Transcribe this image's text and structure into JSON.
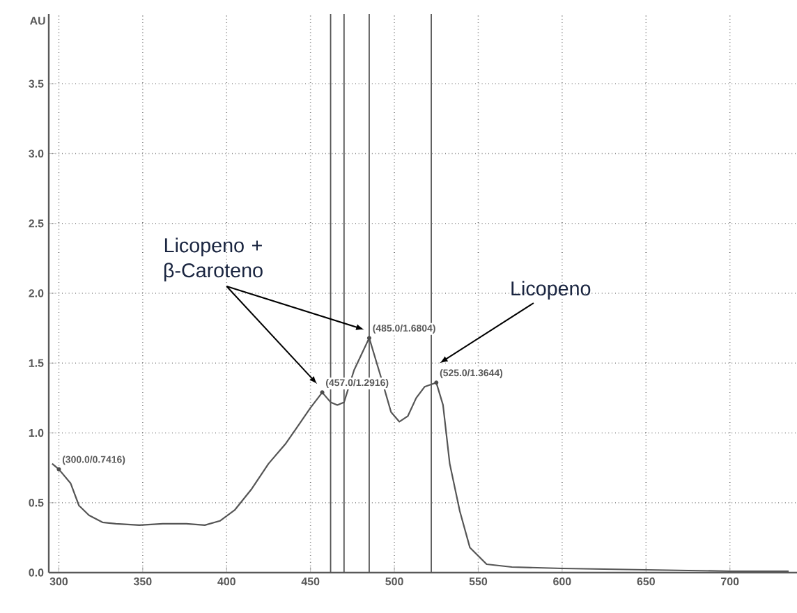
{
  "chart_data": {
    "type": "line",
    "ylabel": "AU",
    "x": [
      296,
      300,
      307,
      312,
      318,
      326,
      334,
      348,
      362,
      376,
      387,
      396,
      405,
      415,
      425,
      435,
      442,
      450,
      457,
      462,
      466,
      470,
      476,
      485,
      492,
      498,
      503,
      508,
      513,
      518,
      525,
      529,
      533,
      539,
      545,
      555,
      570,
      600,
      650,
      700,
      735
    ],
    "series": [
      {
        "color": "#555555",
        "values": [
          0.78,
          0.74,
          0.64,
          0.48,
          0.41,
          0.36,
          0.35,
          0.34,
          0.35,
          0.35,
          0.34,
          0.37,
          0.45,
          0.6,
          0.78,
          0.92,
          1.04,
          1.18,
          1.29,
          1.22,
          1.2,
          1.22,
          1.45,
          1.68,
          1.4,
          1.15,
          1.08,
          1.12,
          1.25,
          1.33,
          1.36,
          1.2,
          0.78,
          0.44,
          0.18,
          0.06,
          0.04,
          0.03,
          0.02,
          0.01,
          0.01
        ]
      }
    ],
    "xlim": [
      294,
      740
    ],
    "ylim": [
      0,
      4.0
    ],
    "xticks": [
      300,
      350,
      400,
      450,
      500,
      550,
      600,
      650,
      700
    ],
    "yticks": [
      {
        "value": 0,
        "label": "0.0"
      },
      {
        "value": 0.5,
        "label": "0.5"
      },
      {
        "value": 1,
        "label": "1.0"
      },
      {
        "value": 1.5,
        "label": "1.5"
      },
      {
        "value": 2,
        "label": "2.0"
      },
      {
        "value": 2.5,
        "label": "2.5"
      },
      {
        "value": 3,
        "label": "3.0"
      },
      {
        "value": 3.5,
        "label": "3.5"
      }
    ],
    "grid": true,
    "line_style": "solid",
    "ref_lines": [
      {
        "axis": "x",
        "value": 462,
        "color": "#555555"
      },
      {
        "axis": "x",
        "value": 470,
        "color": "#555555"
      },
      {
        "axis": "x",
        "value": 485,
        "color": "#555555"
      },
      {
        "axis": "x",
        "value": 522,
        "color": "#555555"
      }
    ],
    "annotations": [
      {
        "text": "(300.0/0.7416)",
        "x": 300,
        "y": 0.74
      },
      {
        "text": "(457.0/1.2916)",
        "x": 457,
        "y": 1.29
      },
      {
        "text": "(485.0/1.6804)",
        "x": 485,
        "y": 1.68
      },
      {
        "text": "(525.0/1.3644)",
        "x": 525,
        "y": 1.36
      },
      {
        "text": "Licopeno + β-Caroteno",
        "x": 482,
        "y": 1.74
      },
      "Licopeno"
    ]
  }
}
